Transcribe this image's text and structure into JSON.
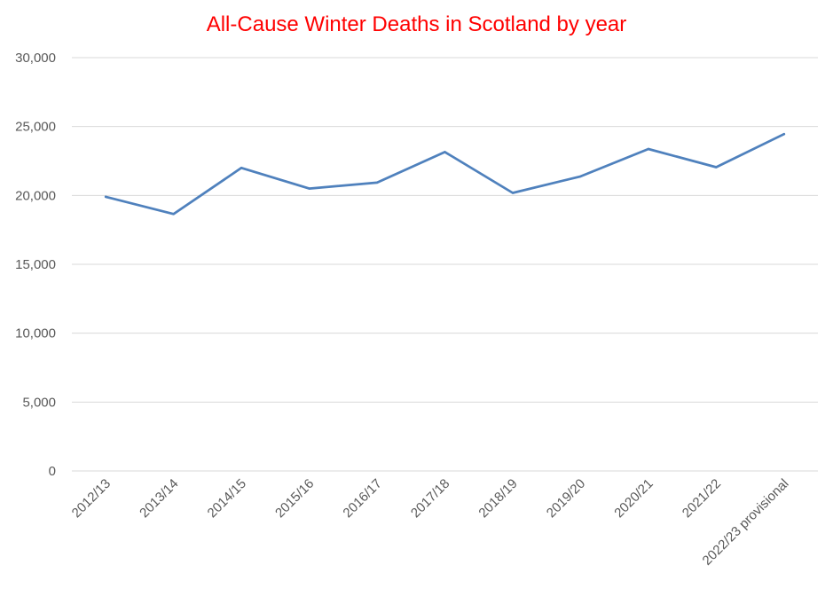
{
  "chart_data": {
    "type": "line",
    "title": "All-Cause Winter Deaths in Scotland by year",
    "xlabel": "",
    "ylabel": "",
    "categories": [
      "2012/13",
      "2013/14",
      "2014/15",
      "2015/16",
      "2016/17",
      "2017/18",
      "2018/19",
      "2019/20",
      "2020/21",
      "2021/22",
      "2022/23 provisional"
    ],
    "series": [
      {
        "values": [
          19900,
          18650,
          22000,
          20500,
          20930,
          23150,
          20180,
          21380,
          23370,
          22050,
          24450
        ]
      }
    ],
    "ylim": [
      0,
      30000
    ],
    "yticks": [
      0,
      5000,
      10000,
      15000,
      20000,
      25000,
      30000
    ],
    "ytick_labels": [
      "0",
      "5,000",
      "10,000",
      "15,000",
      "20,000",
      "25,000",
      "30,000"
    ],
    "grid": true,
    "legend": "none"
  },
  "colors": {
    "title": "#ff0000",
    "line": "#4f81bd",
    "grid": "#d9d9d9",
    "tick_text": "#595959"
  }
}
